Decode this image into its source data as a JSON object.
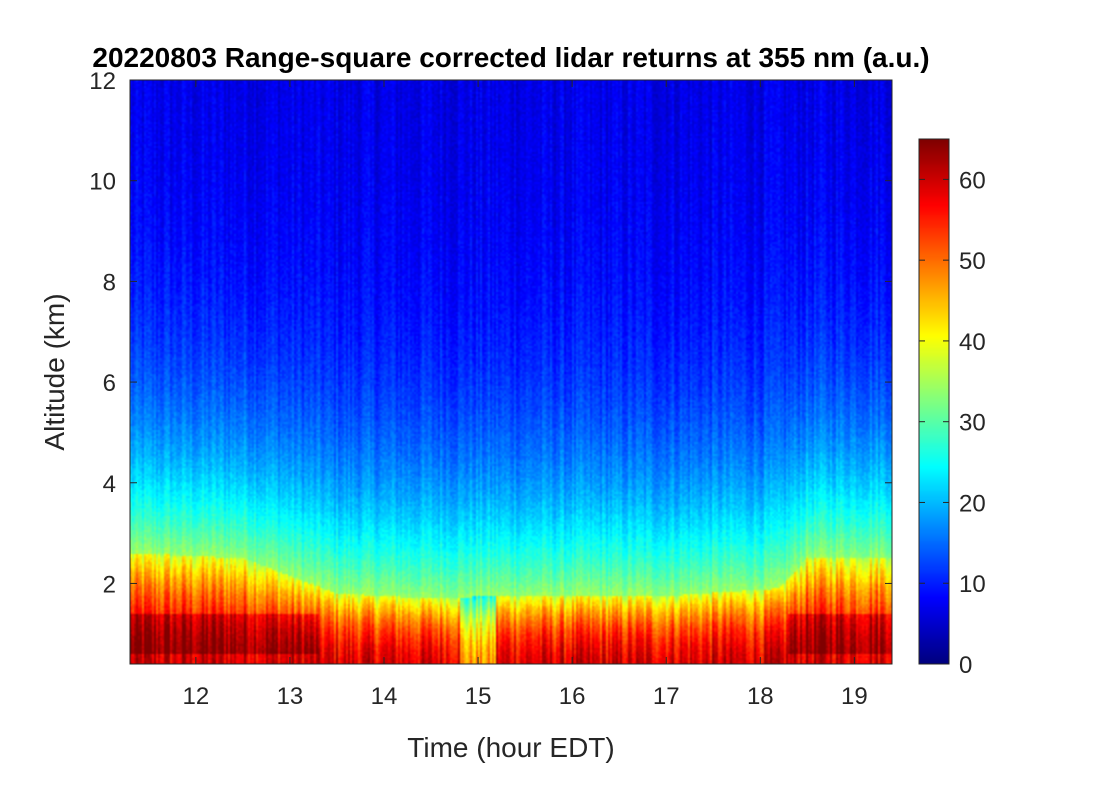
{
  "chart_data": {
    "type": "heatmap",
    "title": "20220803  Range-square corrected lidar returns at 355 nm (a.u.)",
    "xlabel": "Time (hour EDT)",
    "ylabel": "Altitude (km)",
    "xlim": [
      11.3,
      19.4
    ],
    "ylim": [
      0.4,
      12
    ],
    "xticks": [
      12,
      13,
      14,
      15,
      16,
      17,
      18,
      19
    ],
    "yticks": [
      2,
      4,
      6,
      8,
      10,
      12
    ],
    "colorbar": {
      "range": [
        0,
        65
      ],
      "ticks": [
        0,
        10,
        20,
        30,
        40,
        50,
        60
      ],
      "colormap": "jet",
      "location": "right"
    },
    "features": {
      "near_surface_value": 60,
      "aloft_value": 6,
      "boundary_layer_top_km": [
        {
          "t": 11.3,
          "h": 2.6
        },
        {
          "t": 12.5,
          "h": 2.5
        },
        {
          "t": 13.5,
          "h": 1.8
        },
        {
          "t": 14.5,
          "h": 1.7
        },
        {
          "t": 15.2,
          "h": 1.75
        },
        {
          "t": 17.0,
          "h": 1.75
        },
        {
          "t": 18.2,
          "h": 1.9
        },
        {
          "t": 18.5,
          "h": 2.5
        },
        {
          "t": 19.4,
          "h": 2.5
        }
      ],
      "data_gap_hours": [
        14.8,
        15.2
      ]
    }
  }
}
